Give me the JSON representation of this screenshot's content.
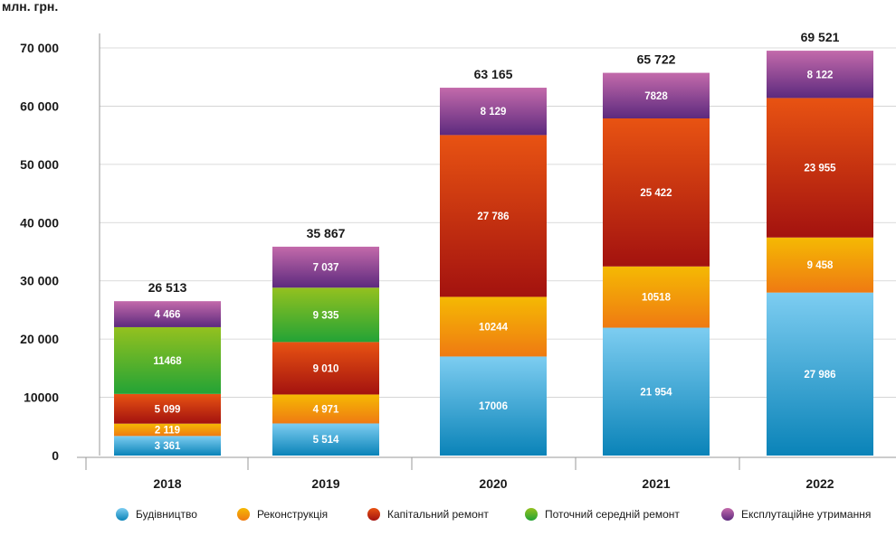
{
  "chart_data": {
    "type": "bar",
    "stacked": true,
    "unit_label": "млн. грн.",
    "categories": [
      "2018",
      "2019",
      "2020",
      "2021",
      "2022"
    ],
    "ylim": [
      0,
      70000
    ],
    "yticks": [
      "0",
      "10000",
      "20 000",
      "30 000",
      "40 000",
      "50 000",
      "60 000",
      "70 000"
    ],
    "ytick_values": [
      0,
      10000,
      20000,
      30000,
      40000,
      50000,
      60000,
      70000
    ],
    "grid": true,
    "legend_position": "bottom",
    "totals": [
      "26 513",
      "35 867",
      "63 165",
      "65 722",
      "69 521"
    ],
    "series": [
      {
        "name": "Будівництво",
        "values": [
          3361,
          5514,
          17006,
          21954,
          27986
        ],
        "labels": [
          "3 361",
          "5 514",
          "17006",
          "21 954",
          "27 986"
        ],
        "color_top": "#7dcdf1",
        "color_bottom": "#0a83b8"
      },
      {
        "name": "Реконструкція",
        "values": [
          2119,
          4971,
          10244,
          10518,
          9458
        ],
        "labels": [
          "2 119",
          "4 971",
          "10244",
          "10518",
          "9 458"
        ],
        "color_top": "#f5b903",
        "color_bottom": "#ef7a12"
      },
      {
        "name": "Капітальний ремонт",
        "values": [
          5099,
          9010,
          27786,
          25422,
          23955
        ],
        "labels": [
          "5 099",
          "9 010",
          "27 786",
          "25 422",
          "23 955"
        ],
        "color_top": "#e85312",
        "color_bottom": "#a3120f"
      },
      {
        "name": "Поточний середній ремонт",
        "values": [
          11468,
          9335,
          0,
          0,
          0
        ],
        "labels": [
          "11468",
          "9 335",
          "",
          "",
          ""
        ],
        "color_top": "#94c11f",
        "color_bottom": "#23a336"
      },
      {
        "name": "Експлутаційне утримання",
        "values": [
          4466,
          7037,
          8129,
          7828,
          8122
        ],
        "labels": [
          "4 466",
          "7 037",
          "8 129",
          "7828",
          "8 122"
        ],
        "color_top": "#c36aab",
        "color_bottom": "#5d2a7e"
      }
    ]
  }
}
